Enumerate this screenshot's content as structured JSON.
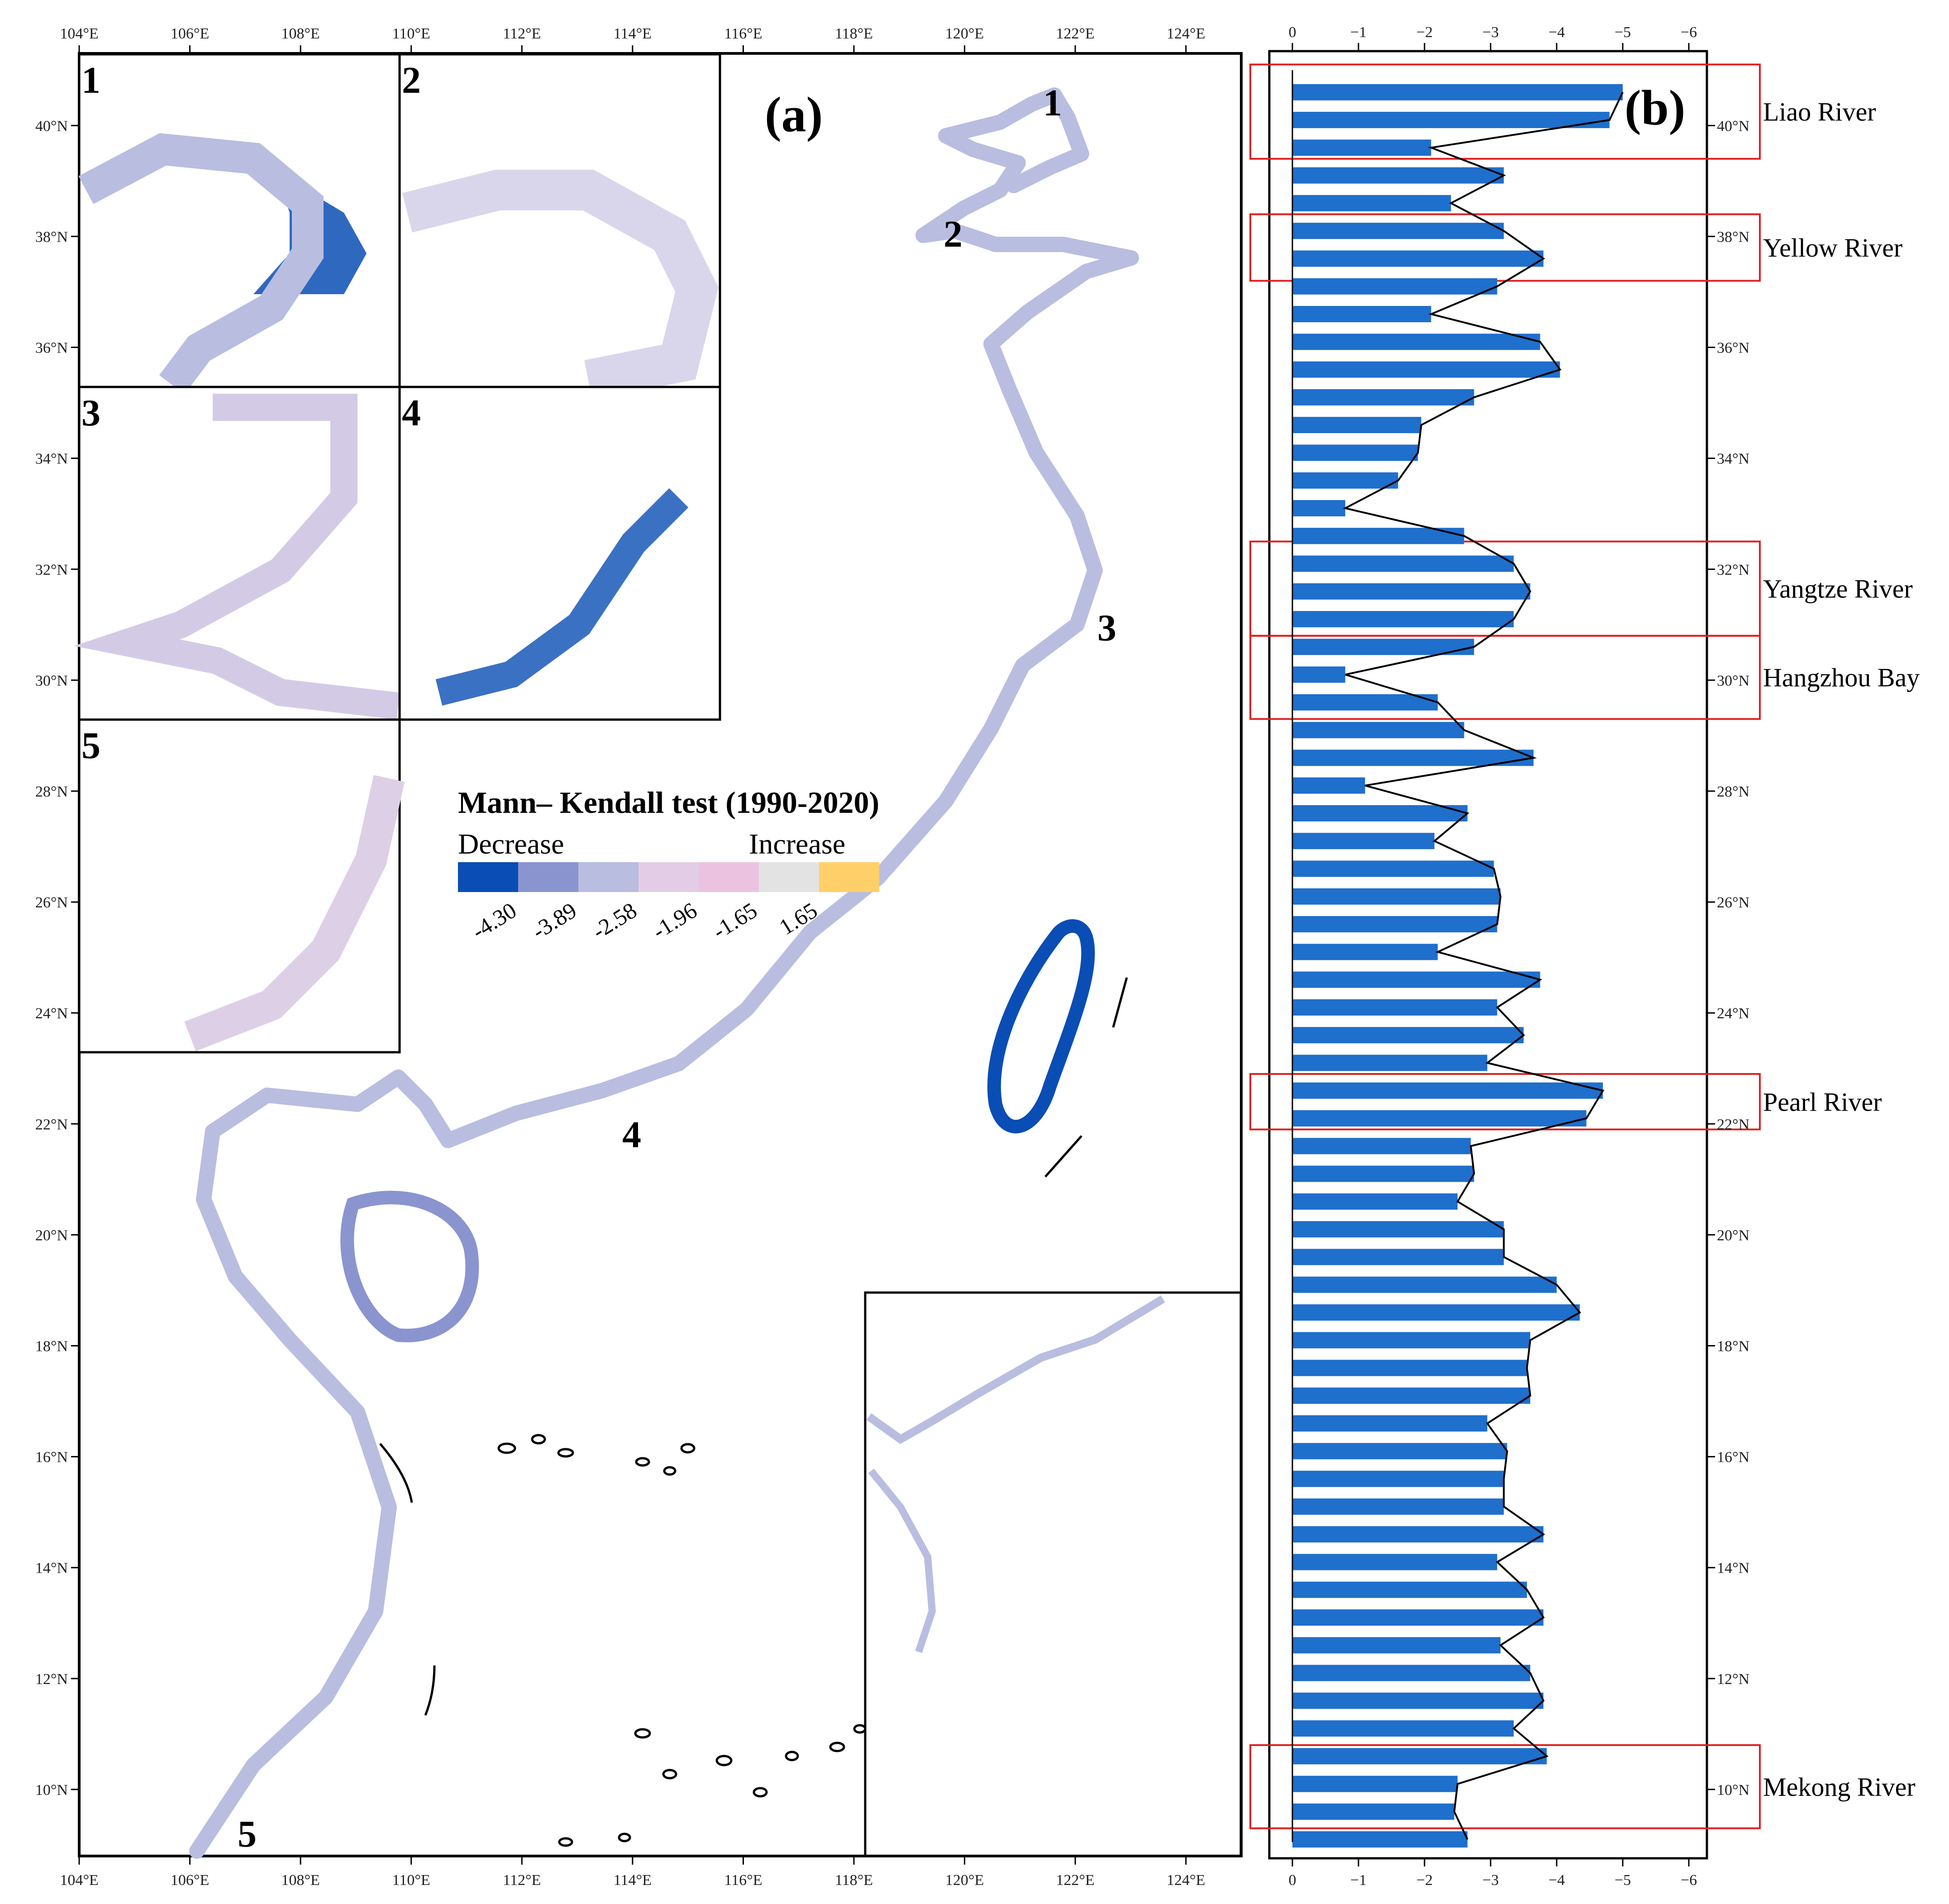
{
  "panel_a": {
    "label": "(a)",
    "lon_ticks": [
      "104°E",
      "106°E",
      "108°E",
      "110°E",
      "112°E",
      "114°E",
      "116°E",
      "118°E",
      "120°E",
      "122°E",
      "124°E"
    ],
    "lat_ticks": [
      "40°N",
      "38°N",
      "36°N",
      "34°N",
      "32°N",
      "30°N",
      "28°N",
      "26°N",
      "24°N",
      "22°N",
      "20°N",
      "18°N",
      "16°N",
      "14°N",
      "12°N",
      "10°N"
    ],
    "lon_range": [
      104,
      125
    ],
    "lat_range": [
      8.8,
      41.3
    ],
    "insets": [
      "1",
      "2",
      "3",
      "4",
      "5"
    ],
    "map_markers": [
      "1",
      "2",
      "3",
      "4",
      "5"
    ],
    "legend": {
      "title": "Mann– Kendall test  (1990-2020)",
      "low_label": "Decrease",
      "high_label": "Increase",
      "colors": [
        "#0a4db4",
        "#8a94cf",
        "#b9bde0",
        "#e3cde6",
        "#ebc3e0",
        "#e3e3e3",
        "#ffd06a"
      ],
      "values": [
        "-4.30",
        "-3.89",
        "-2.58",
        "-1.96",
        "-1.65",
        "1.65"
      ]
    }
  },
  "chart_data": {
    "type": "bar",
    "orientation": "horizontal",
    "label": "(b)",
    "x_ticks": [
      "0",
      "−1",
      "−2",
      "−3",
      "−4",
      "−5",
      "−6"
    ],
    "xlim": [
      0,
      -6
    ],
    "ylim": [
      8.8,
      41.3
    ],
    "y_ticks": [
      "40°N",
      "38°N",
      "36°N",
      "34°N",
      "32°N",
      "30°N",
      "28°N",
      "26°N",
      "24°N",
      "22°N",
      "20°N",
      "18°N",
      "16°N",
      "14°N",
      "12°N",
      "10°N"
    ],
    "bar_color": "#1f6fcc",
    "line_color": "#000000",
    "latitude": [
      40.6,
      40.1,
      39.6,
      39.1,
      38.6,
      38.1,
      37.6,
      37.1,
      36.6,
      36.1,
      35.6,
      35.1,
      34.6,
      34.1,
      33.6,
      33.1,
      32.6,
      32.1,
      31.6,
      31.1,
      30.6,
      30.1,
      29.6,
      29.1,
      28.6,
      28.1,
      27.6,
      27.1,
      26.6,
      26.1,
      25.6,
      25.1,
      24.6,
      24.1,
      23.6,
      23.1,
      22.6,
      22.1,
      21.6,
      21.1,
      20.6,
      20.1,
      19.6,
      19.1,
      18.6,
      18.1,
      17.6,
      17.1,
      16.6,
      16.1,
      15.6,
      15.1,
      14.6,
      14.1,
      13.6,
      13.1,
      12.6,
      12.1,
      11.6,
      11.1,
      10.6,
      10.1,
      9.6,
      9.1
    ],
    "values": [
      -5.0,
      -4.8,
      -2.1,
      -3.2,
      -2.4,
      -3.2,
      -3.8,
      -3.1,
      -2.1,
      -3.75,
      -4.05,
      -2.75,
      -1.95,
      -1.9,
      -1.6,
      -0.8,
      -2.6,
      -3.35,
      -3.6,
      -3.35,
      -2.75,
      -0.8,
      -2.2,
      -2.6,
      -3.65,
      -1.1,
      -2.65,
      -2.15,
      -3.05,
      -3.15,
      -3.1,
      -2.2,
      -3.75,
      -3.1,
      -3.5,
      -2.95,
      -4.7,
      -4.45,
      -2.7,
      -2.75,
      -2.5,
      -3.2,
      -3.2,
      -4.0,
      -4.35,
      -3.6,
      -3.55,
      -3.6,
      -2.95,
      -3.25,
      -3.2,
      -3.2,
      -3.8,
      -3.1,
      -3.55,
      -3.8,
      -3.15,
      -3.6,
      -3.8,
      -3.35,
      -3.85,
      -2.5,
      -2.45,
      -2.65
    ],
    "regions": [
      {
        "name": "Liao River",
        "lat_min": 39.4,
        "lat_max": 41.1
      },
      {
        "name": "Yellow River",
        "lat_min": 37.2,
        "lat_max": 38.4
      },
      {
        "name": "Yangtze River",
        "lat_min": 30.8,
        "lat_max": 32.5
      },
      {
        "name": "Hangzhou Bay",
        "lat_min": 29.3,
        "lat_max": 30.8
      },
      {
        "name": "Pearl River",
        "lat_min": 21.9,
        "lat_max": 22.9
      },
      {
        "name": "Mekong River",
        "lat_min": 9.3,
        "lat_max": 10.8
      }
    ]
  }
}
